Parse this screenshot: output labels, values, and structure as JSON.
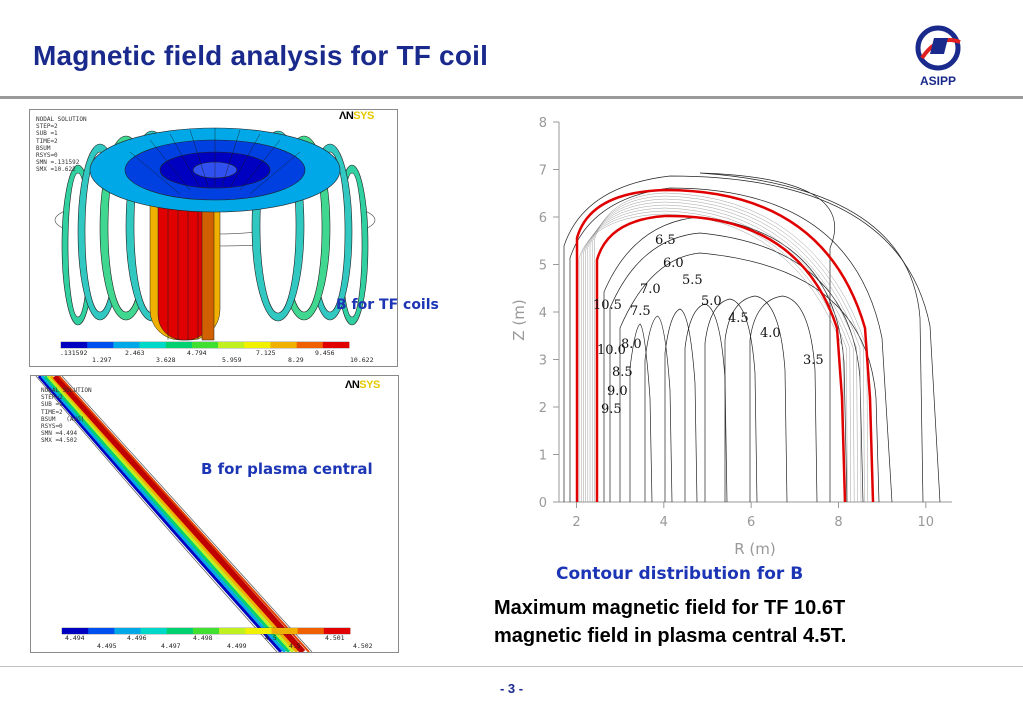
{
  "slide": {
    "title": "Magnetic field analysis for TF coil",
    "logo_text": "ASIPP",
    "page_number": "-  3 -"
  },
  "panel1": {
    "info_lines": [
      "NODAL SOLUTION",
      "STEP=2",
      "SUB =1",
      "TIME=2",
      "BSUM",
      "RSYS=0",
      "SMN =.131592",
      "SMX =10.622"
    ],
    "brand_a": "ΛN",
    "brand_b": "SYS",
    "scale_top": [
      ".131592",
      "2.463",
      "4.794",
      "7.125",
      "9.456"
    ],
    "scale_bottom": [
      "1.297",
      "3.628",
      "5.959",
      "8.29",
      "10.622"
    ],
    "caption": "B for TF coils"
  },
  "panel2": {
    "info_lines": [
      "NODAL SOLUTION",
      "STEP=2",
      "SUB =1",
      "TIME=2",
      "BSUM   (AVG)",
      "RSYS=0",
      "SMN =4.494",
      "SMX =4.502"
    ],
    "brand_a": "ΛN",
    "brand_b": "SYS",
    "scale_top": [
      "4.494",
      "4.496",
      "4.498",
      "4.5",
      "4.501"
    ],
    "scale_bottom": [
      "4.495",
      "4.497",
      "4.499",
      "4.5",
      "4.502"
    ],
    "caption": "B for plasma central"
  },
  "colormap": [
    "#0000c0",
    "#0050f0",
    "#00a8e8",
    "#00d8c8",
    "#00d070",
    "#40e030",
    "#c0f020",
    "#f0f000",
    "#f0b000",
    "#f06000",
    "#e00000"
  ],
  "contour_plot": {
    "caption": "Contour distribution for B",
    "xlabel": "R (m)",
    "ylabel": "Z (m)",
    "xticks": [
      "2",
      "4",
      "6",
      "8",
      "10"
    ],
    "yticks": [
      "0",
      "1",
      "2",
      "3",
      "4",
      "5",
      "6",
      "7",
      "8"
    ],
    "levels_inner": [
      "10.5",
      "10.0",
      "9.5"
    ],
    "levels": [
      "6.5",
      "6.0",
      "5.5",
      "7.0",
      "5.0",
      "7.5",
      "4.5",
      "4.0",
      "8.0",
      "3.5",
      "8.5",
      "9.0"
    ],
    "coil_color": "#e00000"
  },
  "summary": {
    "line1": "Maximum magnetic field for TF 10.6T",
    "line2": "magnetic field in plasma central 4.5T."
  }
}
